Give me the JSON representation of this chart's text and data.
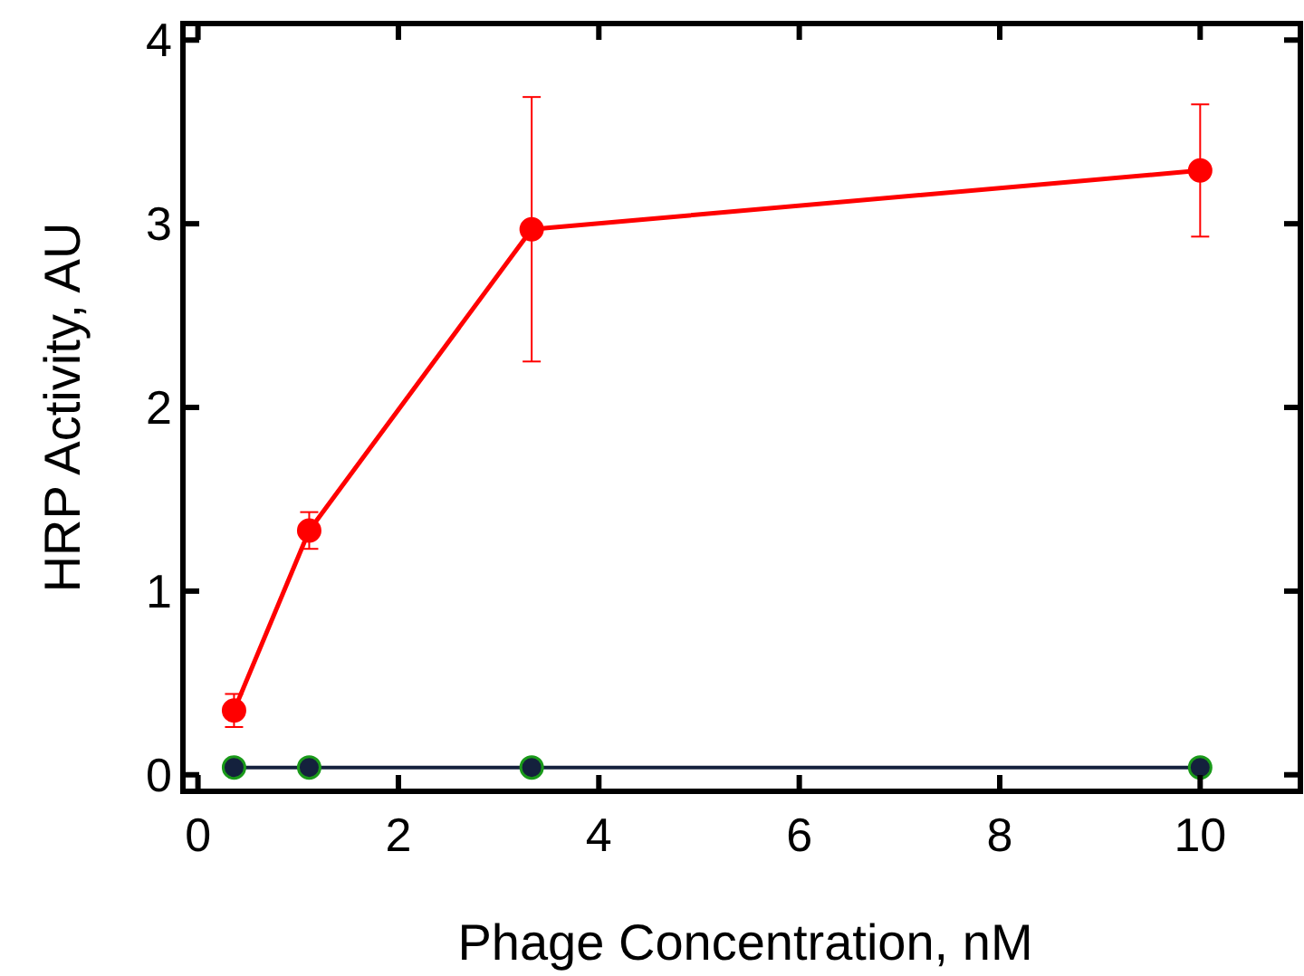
{
  "chart_data": {
    "type": "line",
    "xlabel": "Phage Concentration, nM",
    "ylabel": "HRP Activity, AU",
    "xlim": [
      -0.15,
      11
    ],
    "xticks": [
      0,
      2,
      4,
      6,
      8,
      10
    ],
    "ylim": [
      -0.09,
      4.09
    ],
    "yticks": [
      0,
      1,
      2,
      3,
      4
    ],
    "marker": "circle",
    "line_style": "solid",
    "series": [
      {
        "color": "#ff0000",
        "x": [
          0.36,
          1.11,
          3.33,
          10
        ],
        "values": [
          0.35,
          1.33,
          2.97,
          3.29
        ],
        "errors": [
          0.09,
          0.1,
          0.72,
          0.36
        ]
      },
      {
        "color": "#14213d",
        "x": [
          0.36,
          1.11,
          3.33,
          10
        ],
        "values": [
          0.04,
          0.04,
          0.04,
          0.04
        ]
      }
    ]
  }
}
